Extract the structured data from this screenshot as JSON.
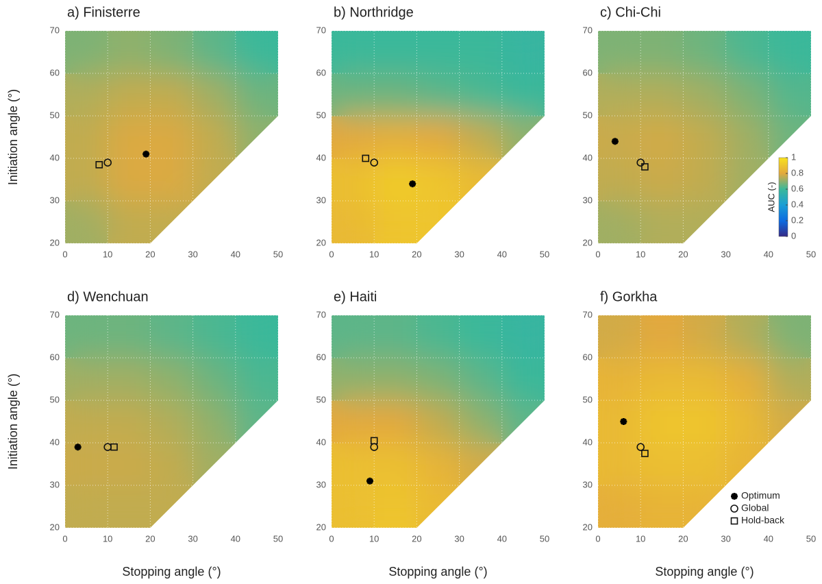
{
  "chart_data": [
    {
      "type": "heatmap",
      "title": "a) Finisterre",
      "ylabel": "Initiation angle (°)",
      "xlim": [
        0,
        50
      ],
      "ylim": [
        20,
        70
      ],
      "xticks": [
        0,
        10,
        20,
        30,
        40,
        50
      ],
      "yticks": [
        20,
        30,
        40,
        50,
        60,
        70
      ],
      "grid": true,
      "colormap": [
        "#352a87",
        "#0d6be0",
        "#1a9ed5",
        "#3bb89a",
        "#e3a93e",
        "#f8e11e"
      ],
      "clim": [
        0,
        1
      ],
      "grid_x": [
        5,
        15,
        25,
        35,
        45
      ],
      "grid_y": [
        25,
        35,
        45,
        55,
        65
      ],
      "values": [
        [
          0.72,
          0.76,
          0.76,
          null,
          null
        ],
        [
          0.76,
          0.79,
          0.79,
          0.76,
          null
        ],
        [
          0.76,
          0.79,
          0.79,
          0.76,
          0.7
        ],
        [
          0.74,
          0.76,
          0.76,
          0.72,
          0.66
        ],
        [
          0.68,
          0.7,
          0.68,
          0.64,
          0.6
        ]
      ],
      "series": [
        {
          "marker": "star",
          "x": [
            19
          ],
          "y": [
            41
          ]
        },
        {
          "marker": "circle",
          "x": [
            10
          ],
          "y": [
            39
          ]
        },
        {
          "marker": "square",
          "x": [
            8
          ],
          "y": [
            38.5
          ]
        }
      ]
    },
    {
      "type": "heatmap",
      "title": "b) Northridge",
      "xlim": [
        0,
        50
      ],
      "ylim": [
        20,
        70
      ],
      "xticks": [
        0,
        10,
        20,
        30,
        40,
        50
      ],
      "yticks": [
        20,
        30,
        40,
        50,
        60,
        70
      ],
      "grid": true,
      "colormap": [
        "#352a87",
        "#0d6be0",
        "#1a9ed5",
        "#3bb89a",
        "#e3a93e",
        "#f8e11e"
      ],
      "clim": [
        0,
        1
      ],
      "grid_x": [
        5,
        15,
        25,
        35,
        45
      ],
      "grid_y": [
        25,
        35,
        45,
        55,
        65
      ],
      "values": [
        [
          0.86,
          0.9,
          0.9,
          null,
          null
        ],
        [
          0.88,
          0.92,
          0.9,
          0.86,
          null
        ],
        [
          0.8,
          0.82,
          0.8,
          0.76,
          0.7
        ],
        [
          0.66,
          0.66,
          0.64,
          0.62,
          0.6
        ],
        [
          0.6,
          0.6,
          0.6,
          0.6,
          0.58
        ]
      ],
      "series": [
        {
          "marker": "star",
          "x": [
            19
          ],
          "y": [
            34
          ]
        },
        {
          "marker": "circle",
          "x": [
            10
          ],
          "y": [
            39
          ]
        },
        {
          "marker": "square",
          "x": [
            8
          ],
          "y": [
            40
          ]
        }
      ]
    },
    {
      "type": "heatmap",
      "title": "c) Chi-Chi",
      "xlim": [
        0,
        50
      ],
      "ylim": [
        20,
        70
      ],
      "xticks": [
        0,
        10,
        20,
        30,
        40,
        50
      ],
      "yticks": [
        20,
        30,
        40,
        50,
        60,
        70
      ],
      "grid": true,
      "colormap": [
        "#352a87",
        "#0d6be0",
        "#1a9ed5",
        "#3bb89a",
        "#e3a93e",
        "#f8e11e"
      ],
      "clim": [
        0,
        1
      ],
      "grid_x": [
        5,
        15,
        25,
        35,
        45
      ],
      "grid_y": [
        25,
        35,
        45,
        55,
        65
      ],
      "values": [
        [
          0.72,
          0.74,
          0.74,
          null,
          null
        ],
        [
          0.76,
          0.77,
          0.76,
          0.72,
          null
        ],
        [
          0.77,
          0.78,
          0.76,
          0.72,
          0.66
        ],
        [
          0.74,
          0.74,
          0.72,
          0.68,
          0.63
        ],
        [
          0.68,
          0.68,
          0.66,
          0.62,
          0.6
        ]
      ],
      "series": [
        {
          "marker": "star",
          "x": [
            4
          ],
          "y": [
            44
          ]
        },
        {
          "marker": "circle",
          "x": [
            10
          ],
          "y": [
            39
          ]
        },
        {
          "marker": "square",
          "x": [
            11
          ],
          "y": [
            38
          ]
        }
      ],
      "colorbar": {
        "label": "AUC (-)",
        "lim": [
          0,
          1
        ],
        "ticks": [
          0,
          0.2,
          0.4,
          0.6,
          0.8,
          1
        ]
      }
    },
    {
      "type": "heatmap",
      "title": "d) Wenchuan",
      "xlabel": "Stopping angle (°)",
      "ylabel": "Initiation angle (°)",
      "xlim": [
        0,
        50
      ],
      "ylim": [
        20,
        70
      ],
      "xticks": [
        0,
        10,
        20,
        30,
        40,
        50
      ],
      "yticks": [
        20,
        30,
        40,
        50,
        60,
        70
      ],
      "grid": true,
      "colormap": [
        "#352a87",
        "#0d6be0",
        "#1a9ed5",
        "#3bb89a",
        "#e3a93e",
        "#f8e11e"
      ],
      "clim": [
        0,
        1
      ],
      "grid_x": [
        5,
        15,
        25,
        35,
        45
      ],
      "grid_y": [
        25,
        35,
        45,
        55,
        65
      ],
      "values": [
        [
          0.76,
          0.76,
          0.76,
          null,
          null
        ],
        [
          0.77,
          0.77,
          0.76,
          0.72,
          null
        ],
        [
          0.76,
          0.76,
          0.74,
          0.7,
          0.64
        ],
        [
          0.72,
          0.72,
          0.7,
          0.66,
          0.62
        ],
        [
          0.66,
          0.66,
          0.64,
          0.62,
          0.6
        ]
      ],
      "series": [
        {
          "marker": "star",
          "x": [
            3
          ],
          "y": [
            39
          ]
        },
        {
          "marker": "circle",
          "x": [
            10
          ],
          "y": [
            39
          ]
        },
        {
          "marker": "square",
          "x": [
            11.5
          ],
          "y": [
            39
          ]
        }
      ]
    },
    {
      "type": "heatmap",
      "title": "e) Haiti",
      "xlabel": "Stopping angle (°)",
      "xlim": [
        0,
        50
      ],
      "ylim": [
        20,
        70
      ],
      "xticks": [
        0,
        10,
        20,
        30,
        40,
        50
      ],
      "yticks": [
        20,
        30,
        40,
        50,
        60,
        70
      ],
      "grid": true,
      "colormap": [
        "#352a87",
        "#0d6be0",
        "#1a9ed5",
        "#3bb89a",
        "#e3a93e",
        "#f8e11e"
      ],
      "clim": [
        0,
        1
      ],
      "grid_x": [
        5,
        15,
        25,
        35,
        45
      ],
      "grid_y": [
        25,
        35,
        45,
        55,
        65
      ],
      "values": [
        [
          0.88,
          0.9,
          0.86,
          null,
          null
        ],
        [
          0.88,
          0.88,
          0.84,
          0.78,
          null
        ],
        [
          0.8,
          0.8,
          0.76,
          0.7,
          0.64
        ],
        [
          0.7,
          0.7,
          0.68,
          0.64,
          0.6
        ],
        [
          0.64,
          0.64,
          0.62,
          0.6,
          0.58
        ]
      ],
      "series": [
        {
          "marker": "star",
          "x": [
            9
          ],
          "y": [
            31
          ]
        },
        {
          "marker": "circle",
          "x": [
            10
          ],
          "y": [
            39
          ]
        },
        {
          "marker": "square",
          "x": [
            10
          ],
          "y": [
            40.5
          ]
        }
      ]
    },
    {
      "type": "heatmap",
      "title": "f) Gorkha",
      "xlabel": "Stopping angle (°)",
      "xlim": [
        0,
        50
      ],
      "ylim": [
        20,
        70
      ],
      "xticks": [
        0,
        10,
        20,
        30,
        40,
        50
      ],
      "yticks": [
        20,
        30,
        40,
        50,
        60,
        70
      ],
      "grid": true,
      "colormap": [
        "#352a87",
        "#0d6be0",
        "#1a9ed5",
        "#3bb89a",
        "#e3a93e",
        "#f8e11e"
      ],
      "clim": [
        0,
        1
      ],
      "grid_x": [
        5,
        15,
        25,
        35,
        45
      ],
      "grid_y": [
        25,
        35,
        45,
        55,
        65
      ],
      "values": [
        [
          0.82,
          0.84,
          0.84,
          null,
          null
        ],
        [
          0.86,
          0.88,
          0.88,
          0.84,
          null
        ],
        [
          0.86,
          0.9,
          0.9,
          0.86,
          0.78
        ],
        [
          0.84,
          0.86,
          0.86,
          0.82,
          0.74
        ],
        [
          0.78,
          0.8,
          0.78,
          0.74,
          0.68
        ]
      ],
      "series": [
        {
          "name": "Optimum",
          "marker": "star",
          "x": [
            6
          ],
          "y": [
            45
          ]
        },
        {
          "name": "Global",
          "marker": "circle",
          "x": [
            10
          ],
          "y": [
            39
          ]
        },
        {
          "name": "Hold-back",
          "marker": "square",
          "x": [
            11
          ],
          "y": [
            37.5
          ]
        }
      ],
      "legend": "lower right"
    }
  ]
}
